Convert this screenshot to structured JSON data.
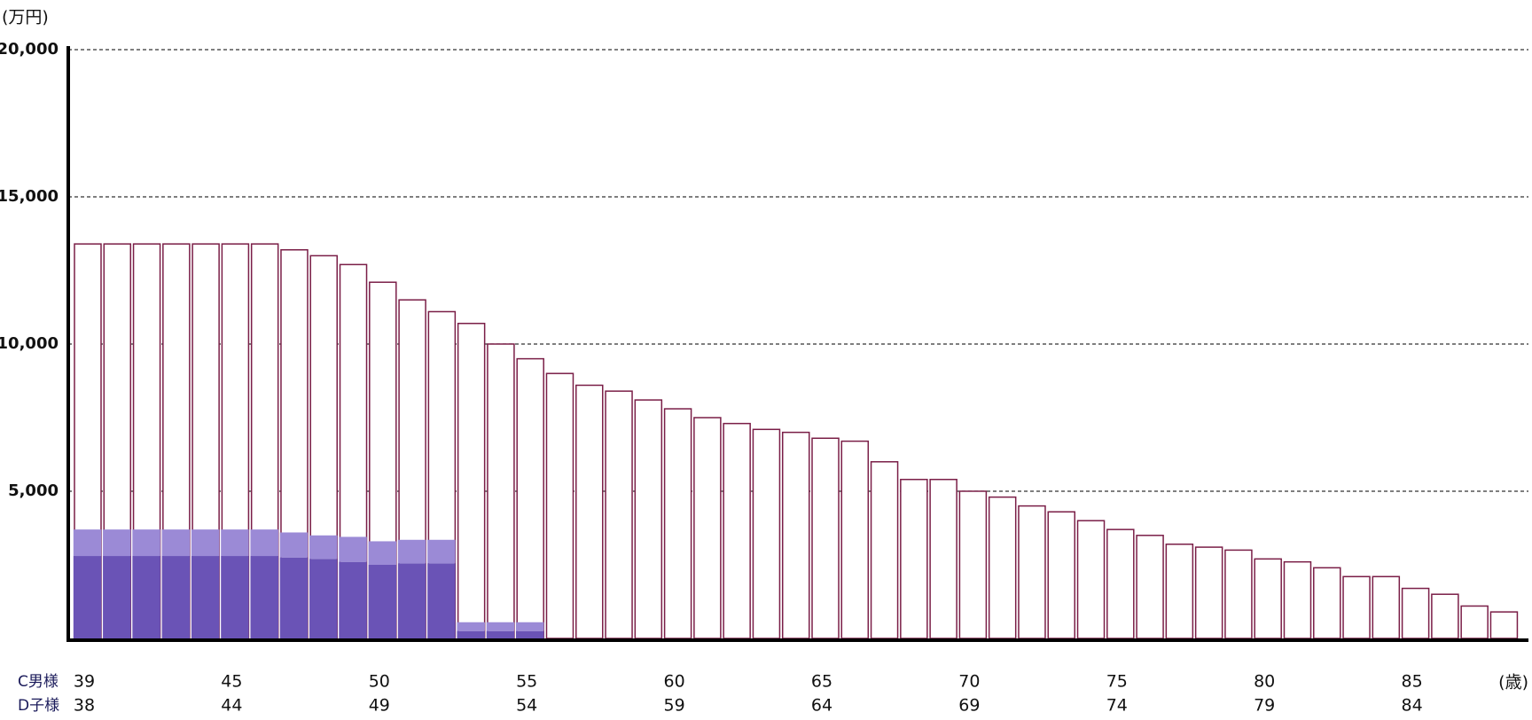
{
  "chart_data": {
    "type": "bar",
    "y_unit_label": "(万円)",
    "x_unit_label": "(歳)",
    "ylim": [
      0,
      20000
    ],
    "yticks": [
      {
        "value": 5000,
        "label": "5,000"
      },
      {
        "value": 10000,
        "label": "10,000"
      },
      {
        "value": 15000,
        "label": "15,000"
      },
      {
        "value": 20000,
        "label": "20,000"
      }
    ],
    "grid": true,
    "category_rows": [
      {
        "name": "C男様",
        "labels": [
          "39",
          null,
          null,
          null,
          null,
          "45",
          null,
          null,
          null,
          null,
          "50",
          null,
          null,
          null,
          null,
          "55",
          null,
          null,
          null,
          null,
          "60",
          null,
          null,
          null,
          null,
          "65",
          null,
          null,
          null,
          null,
          "70",
          null,
          null,
          null,
          null,
          "75",
          null,
          null,
          null,
          null,
          "80",
          null,
          null,
          null,
          null,
          "85",
          null,
          null,
          null
        ]
      },
      {
        "name": "D子様",
        "labels": [
          "38",
          null,
          null,
          null,
          null,
          "44",
          null,
          null,
          null,
          null,
          "49",
          null,
          null,
          null,
          null,
          "54",
          null,
          null,
          null,
          null,
          "59",
          null,
          null,
          null,
          null,
          "64",
          null,
          null,
          null,
          null,
          "69",
          null,
          null,
          null,
          null,
          "74",
          null,
          null,
          null,
          null,
          "79",
          null,
          null,
          null,
          null,
          "84",
          null,
          null,
          null
        ]
      }
    ],
    "totals": {
      "color": "#7a1e47",
      "values": [
        13400,
        13400,
        13400,
        13400,
        13400,
        13400,
        13400,
        13200,
        13000,
        12700,
        12100,
        11500,
        11100,
        10700,
        10000,
        9500,
        9000,
        8600,
        8400,
        8100,
        7800,
        7500,
        7300,
        7100,
        7000,
        6800,
        6700,
        6000,
        5400,
        5400,
        5000,
        4800,
        4500,
        4300,
        4000,
        3700,
        3500,
        3200,
        3100,
        3000,
        2700,
        2600,
        2400,
        2100,
        2100,
        1700,
        1500,
        1100,
        900
      ]
    },
    "series": [
      {
        "color": "#6a53b6",
        "values": [
          2800,
          2800,
          2800,
          2800,
          2800,
          2800,
          2800,
          2750,
          2700,
          2600,
          2500,
          2550,
          2550,
          250,
          250,
          250,
          null,
          null,
          null,
          null,
          null,
          null,
          null,
          null,
          null,
          null,
          null,
          null,
          null,
          null,
          null,
          null,
          null,
          null,
          null,
          null,
          null,
          null,
          null,
          null,
          null,
          null,
          null,
          null,
          null,
          null,
          null,
          null,
          null
        ]
      },
      {
        "color": "#9b8ad6",
        "values": [
          900,
          900,
          900,
          900,
          900,
          900,
          900,
          850,
          800,
          850,
          800,
          800,
          800,
          300,
          300,
          300,
          null,
          null,
          null,
          null,
          null,
          null,
          null,
          null,
          null,
          null,
          null,
          null,
          null,
          null,
          null,
          null,
          null,
          null,
          null,
          null,
          null,
          null,
          null,
          null,
          null,
          null,
          null,
          null,
          null,
          null,
          null,
          null,
          null
        ]
      }
    ]
  }
}
